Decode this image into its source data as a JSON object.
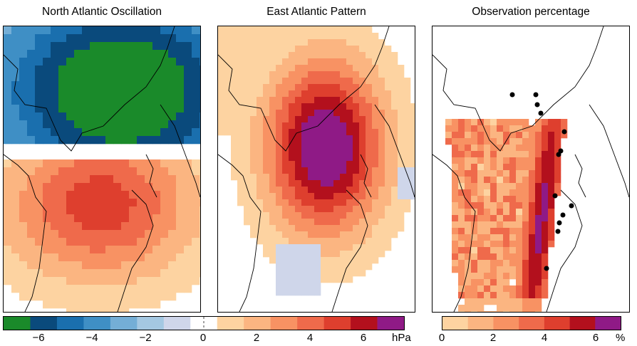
{
  "titles": {
    "nao": "North Atlantic Oscillation",
    "eap": "East Atlantic Pattern",
    "obs": "Observation percentage"
  },
  "colors": {
    "blue": [
      "#0a4a7c",
      "#1a6fae",
      "#3f8fc5",
      "#74aed6",
      "#a4c8e2",
      "#cfd6ea"
    ],
    "green": "#1a8a2a",
    "red": [
      "#fdd3a1",
      "#fbb581",
      "#f89263",
      "#ef6a4b",
      "#de3f2e",
      "#b3101d",
      "#8f1a86"
    ]
  },
  "chart_data": [
    {
      "type": "heatmap",
      "title": "North Atlantic Oscillation",
      "colorbar_unit": "hPa",
      "colorbar_range": [
        -7,
        8
      ],
      "colorbar_ticks": [
        "−6",
        "−4",
        "−2",
        "0",
        "2",
        "4",
        "6"
      ],
      "pattern": "dipole",
      "negative_center_hPa": -6.5,
      "positive_center_hPa": 4.5
    },
    {
      "type": "heatmap",
      "title": "East Atlantic Pattern",
      "colorbar_unit": "hPa",
      "colorbar_range": [
        -7,
        8
      ],
      "pattern": "monopole",
      "positive_center_hPa": 7.5,
      "secondary_negative_hPa": -1
    },
    {
      "type": "heatmap",
      "title": "Observation percentage",
      "colorbar_unit": "%",
      "colorbar_range": [
        0,
        7
      ],
      "colorbar_ticks": [
        "0",
        "2",
        "4",
        "6"
      ],
      "max_value_percent": 7,
      "station_markers": 13
    }
  ],
  "colorbars": {
    "left": {
      "ticks": [
        "−6",
        "−4",
        "−2",
        "0",
        "2",
        "4",
        "6"
      ],
      "unit": "hPa"
    },
    "right": {
      "ticks": [
        "0",
        "2",
        "4",
        "6"
      ],
      "unit": "%"
    }
  }
}
